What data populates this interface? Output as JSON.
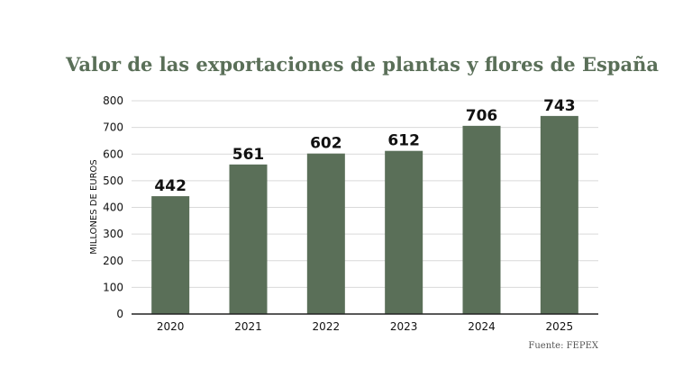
{
  "colors": {
    "bar": "#5a6f58",
    "title": "#5a6f58",
    "axis": "#222222",
    "grid": "#d9d9d9",
    "label": "#111111",
    "source": "#555555"
  },
  "chart_data": {
    "type": "bar",
    "title": "Valor de las exportaciones de plantas y flores de España",
    "xlabel": "",
    "ylabel": "MILLONES DE EUROS",
    "categories": [
      "2020",
      "2021",
      "2022",
      "2023",
      "2024",
      "2025"
    ],
    "values": [
      442,
      561,
      602,
      612,
      706,
      743
    ],
    "data_labels": [
      "442",
      "561",
      "602",
      "612",
      "706",
      "743"
    ],
    "ylim": [
      0,
      800
    ],
    "yticks": [
      "0",
      "100",
      "200",
      "300",
      "400",
      "500",
      "600",
      "700",
      "800"
    ],
    "grid": true,
    "legend": "none",
    "source": "Fuente: FEPEX"
  }
}
